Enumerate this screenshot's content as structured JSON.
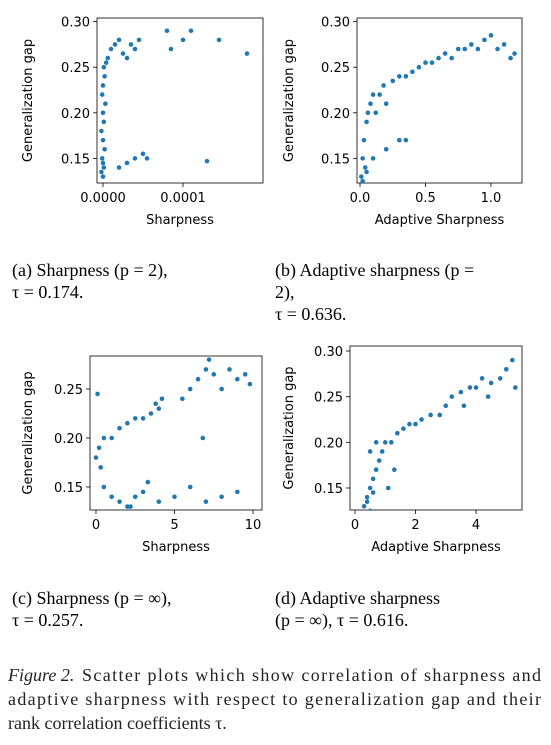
{
  "chart_data": [
    {
      "type": "scatter",
      "x_label": "Sharpness",
      "y_label": "Generalization gap",
      "color": "#1f77b4",
      "caption": [
        "(a) Sharpness (p = 2),",
        "τ = 0.174."
      ],
      "xlim": [
        -7.5e-06,
        0.0002
      ],
      "ylim": [
        0.123,
        0.304
      ],
      "xticks": [
        {
          "value": 0,
          "label": "0.0000"
        },
        0.0001
      ],
      "yticks": [
        0.15,
        {
          "value": 0.2,
          "label": "0.20"
        },
        0.25,
        {
          "value": 0.3,
          "label": "0.30"
        }
      ],
      "x": [
        0,
        1e-06,
        -1e-06,
        2e-06,
        0,
        -2e-06,
        1e-06,
        0,
        3e-06,
        -1e-06,
        0,
        2e-06,
        1e-06,
        -2e-06,
        0,
        4e-06,
        6e-06,
        1e-05,
        1.5e-05,
        2e-05,
        2.5e-05,
        3e-05,
        3.5e-05,
        4e-05,
        4.5e-05,
        3e-05,
        4e-05,
        5e-05,
        5.5e-05,
        2e-05,
        8e-05,
        8.5e-05,
        0.0001,
        0.00011,
        0.00013,
        0.000145,
        0.00018
      ],
      "y": [
        0.13,
        0.14,
        0.15,
        0.16,
        0.17,
        0.18,
        0.19,
        0.2,
        0.21,
        0.22,
        0.23,
        0.24,
        0.25,
        0.135,
        0.145,
        0.255,
        0.26,
        0.27,
        0.275,
        0.28,
        0.265,
        0.26,
        0.275,
        0.27,
        0.28,
        0.145,
        0.15,
        0.155,
        0.15,
        0.14,
        0.29,
        0.27,
        0.28,
        0.29,
        0.147,
        0.28,
        0.265
      ]
    },
    {
      "type": "scatter",
      "x_label": "Adaptive Sharpness",
      "y_label": "Generalization gap",
      "color": "#1f77b4",
      "caption": [
        "(b) Adaptive sharpness (p =",
        "2),",
        "τ = 0.636."
      ],
      "xlim": [
        -0.023,
        1.237
      ],
      "ylim": [
        0.123,
        0.304
      ],
      "xticks": [
        {
          "value": 0,
          "label": "0.0"
        },
        0.5,
        {
          "value": 1,
          "label": "1.0"
        }
      ],
      "yticks": [
        0.15,
        {
          "value": 0.2,
          "label": "0.20"
        },
        0.25,
        {
          "value": 0.3,
          "label": "0.30"
        }
      ],
      "x": [
        0.01,
        0.02,
        0.03,
        0.05,
        0.04,
        0.06,
        0.08,
        0.1,
        0.12,
        0.15,
        0.18,
        0.2,
        0.25,
        0.3,
        0.35,
        0.4,
        0.45,
        0.5,
        0.55,
        0.6,
        0.65,
        0.7,
        0.75,
        0.8,
        0.85,
        0.9,
        0.95,
        1.0,
        1.05,
        1.1,
        1.15,
        1.18,
        0.1,
        0.2,
        0.3,
        0.35,
        0.02,
        0.05
      ],
      "y": [
        0.13,
        0.15,
        0.17,
        0.19,
        0.14,
        0.2,
        0.21,
        0.22,
        0.2,
        0.22,
        0.23,
        0.21,
        0.235,
        0.24,
        0.24,
        0.245,
        0.25,
        0.255,
        0.255,
        0.26,
        0.265,
        0.26,
        0.27,
        0.27,
        0.275,
        0.27,
        0.28,
        0.285,
        0.27,
        0.275,
        0.26,
        0.265,
        0.15,
        0.16,
        0.17,
        0.17,
        0.125,
        0.135
      ]
    },
    {
      "type": "scatter",
      "x_label": "Sharpness",
      "y_label": "Generalization gap",
      "color": "#1f77b4",
      "caption": [
        "(c) Sharpness (p = ∞),",
        "τ = 0.257."
      ],
      "xlim": [
        -0.38,
        10.57
      ],
      "ylim": [
        0.1265,
        0.2837
      ],
      "xticks": [
        0,
        5,
        10
      ],
      "yticks": [
        0.15,
        {
          "value": 0.2,
          "label": "0.20"
        },
        0.25
      ],
      "x": [
        0,
        0.2,
        0.5,
        0.3,
        1,
        1.5,
        2,
        2.5,
        3,
        3.5,
        4,
        4.2,
        3.8,
        5.5,
        6,
        6.5,
        7,
        7.5,
        8,
        8.5,
        9,
        9.5,
        9.8,
        7.2,
        1,
        1.5,
        2,
        2.5,
        3,
        4,
        5,
        6,
        7,
        8,
        9,
        0.5,
        0.1,
        2.2,
        3.3,
        6.8
      ],
      "y": [
        0.18,
        0.19,
        0.2,
        0.17,
        0.2,
        0.21,
        0.215,
        0.22,
        0.22,
        0.225,
        0.23,
        0.24,
        0.235,
        0.24,
        0.25,
        0.26,
        0.27,
        0.265,
        0.25,
        0.27,
        0.26,
        0.265,
        0.255,
        0.28,
        0.14,
        0.135,
        0.13,
        0.14,
        0.145,
        0.135,
        0.14,
        0.15,
        0.135,
        0.14,
        0.145,
        0.15,
        0.245,
        0.13,
        0.155,
        0.2
      ]
    },
    {
      "type": "scatter",
      "x_label": "Adaptive Sharpness",
      "y_label": "Generalization gap",
      "color": "#1f77b4",
      "caption": [
        "(d) Adaptive sharpness",
        "(p = ∞), τ = 0.616."
      ],
      "xlim": [
        -0.165,
        5.52
      ],
      "ylim": [
        0.1259,
        0.3055
      ],
      "xticks": [
        0,
        2,
        4
      ],
      "yticks": [
        0.15,
        {
          "value": 0.2,
          "label": "0.20"
        },
        0.25,
        {
          "value": 0.3,
          "label": "0.30"
        }
      ],
      "x": [
        0.3,
        0.4,
        0.5,
        0.6,
        0.5,
        0.7,
        0.8,
        0.9,
        1,
        1.2,
        1.4,
        1.6,
        1.8,
        2,
        2.2,
        2.5,
        2.8,
        3,
        3.2,
        3.5,
        3.8,
        4,
        4.2,
        4.5,
        4.8,
        5,
        5.2,
        5.3,
        0.4,
        0.6,
        0.5,
        0.7,
        1.1,
        1.3,
        3.6,
        4.4
      ],
      "y": [
        0.13,
        0.14,
        0.15,
        0.16,
        0.125,
        0.17,
        0.18,
        0.19,
        0.2,
        0.2,
        0.21,
        0.215,
        0.22,
        0.22,
        0.225,
        0.23,
        0.23,
        0.24,
        0.25,
        0.255,
        0.26,
        0.26,
        0.27,
        0.265,
        0.27,
        0.28,
        0.29,
        0.26,
        0.135,
        0.145,
        0.19,
        0.2,
        0.15,
        0.17,
        0.24,
        0.25
      ]
    }
  ],
  "figure_caption": {
    "label": "Figure 2.",
    "lines": [
      "Scatter plots which show correlation of sharpness and",
      "adaptive sharpness with respect to generalization gap and their",
      "rank correlation coefficients τ."
    ]
  }
}
